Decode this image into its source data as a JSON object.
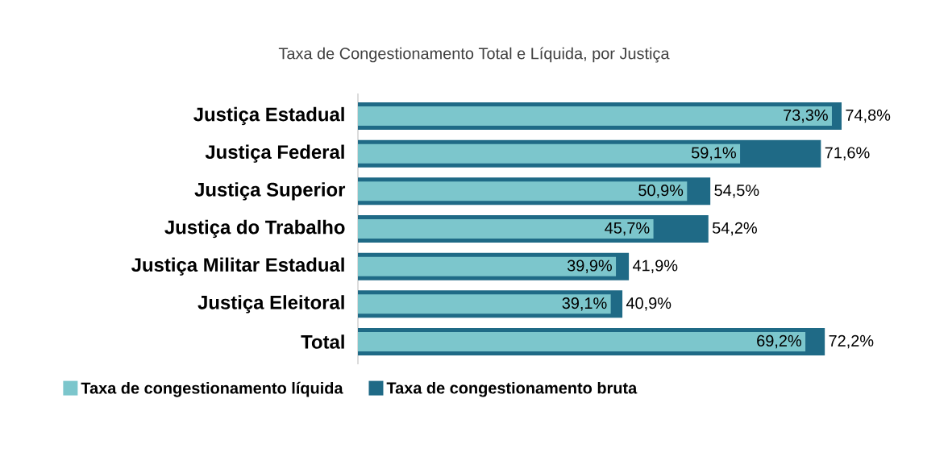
{
  "chart_data": {
    "type": "bar",
    "orientation": "horizontal",
    "title": "Taxa de Congestionamento Total e Líquida, por Justiça",
    "categories": [
      "Justiça Estadual",
      "Justiça  Federal",
      "Justiça Superior",
      "Justiça do Trabalho",
      "Justiça Militar Estadual",
      "Justiça Eleitoral",
      "Total"
    ],
    "series": [
      {
        "name": "Taxa de congestionamento líquida",
        "color": "#7cc6cc",
        "values": [
          73.3,
          59.1,
          50.9,
          45.7,
          39.9,
          39.1,
          69.2
        ],
        "value_labels": [
          "73,3%",
          "59,1%",
          "50,9%",
          "45,7%",
          "39,9%",
          "39,1%",
          "69,2%"
        ]
      },
      {
        "name": "Taxa de congestionamento bruta",
        "color": "#1f6a86",
        "values": [
          74.8,
          71.6,
          54.5,
          54.2,
          41.9,
          40.9,
          72.2
        ],
        "value_labels": [
          "74,8%",
          "71,6%",
          "54,5%",
          "54,2%",
          "41,9%",
          "40,9%",
          "72,2%"
        ]
      }
    ],
    "legend": "bottom"
  }
}
